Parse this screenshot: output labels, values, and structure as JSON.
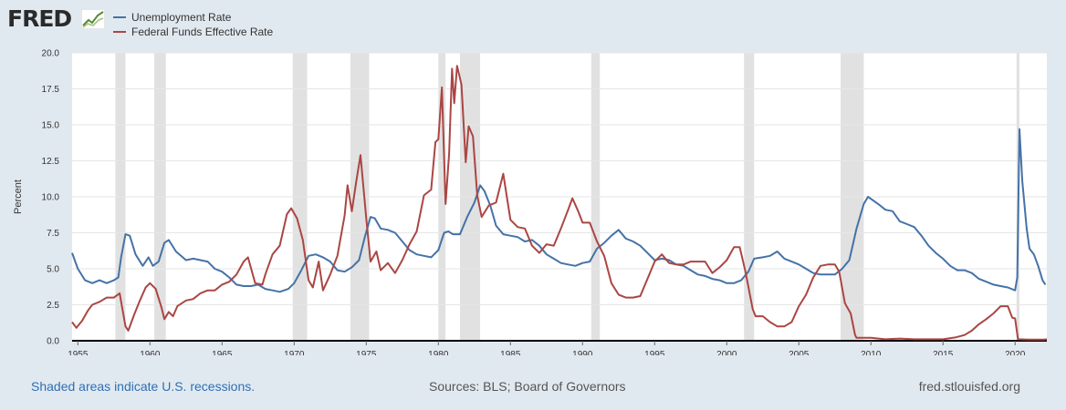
{
  "header": {
    "logo_text": "FRED",
    "logo_icon": "line-graph-icon"
  },
  "chart_data": {
    "type": "line",
    "xlim": [
      1954.6,
      2022.2
    ],
    "ylim": [
      0,
      20
    ],
    "ylabel": "Percent",
    "x_ticks": [
      1955,
      1960,
      1965,
      1970,
      1975,
      1980,
      1985,
      1990,
      1995,
      2000,
      2005,
      2010,
      2015,
      2020
    ],
    "y_ticks": [
      0.0,
      2.5,
      5.0,
      7.5,
      10.0,
      12.5,
      15.0,
      17.5,
      20.0
    ],
    "grid": "horizontal",
    "legend_position": "top-left",
    "recessions": [
      [
        1957.6,
        1958.3
      ],
      [
        1960.3,
        1961.1
      ],
      [
        1969.9,
        1970.9
      ],
      [
        1973.9,
        1975.2
      ],
      [
        1980.0,
        1980.5
      ],
      [
        1981.5,
        1982.9
      ],
      [
        1990.6,
        1991.2
      ],
      [
        2001.2,
        2001.9
      ],
      [
        2007.9,
        2009.5
      ],
      [
        2020.1,
        2020.3
      ]
    ],
    "series": [
      {
        "name": "Unemployment Rate",
        "color": "#4572a7",
        "points": [
          [
            1954.6,
            6.1
          ],
          [
            1955.0,
            5.0
          ],
          [
            1955.5,
            4.2
          ],
          [
            1956.0,
            4.0
          ],
          [
            1956.5,
            4.2
          ],
          [
            1957.0,
            4.0
          ],
          [
            1957.5,
            4.2
          ],
          [
            1957.8,
            4.4
          ],
          [
            1958.0,
            5.8
          ],
          [
            1958.3,
            7.4
          ],
          [
            1958.6,
            7.3
          ],
          [
            1959.0,
            6.0
          ],
          [
            1959.5,
            5.2
          ],
          [
            1959.9,
            5.8
          ],
          [
            1960.2,
            5.2
          ],
          [
            1960.6,
            5.5
          ],
          [
            1961.0,
            6.8
          ],
          [
            1961.3,
            7.0
          ],
          [
            1961.8,
            6.2
          ],
          [
            1962.5,
            5.6
          ],
          [
            1963.0,
            5.7
          ],
          [
            1963.5,
            5.6
          ],
          [
            1964.0,
            5.5
          ],
          [
            1964.5,
            5.0
          ],
          [
            1965.0,
            4.8
          ],
          [
            1965.5,
            4.4
          ],
          [
            1966.0,
            3.9
          ],
          [
            1966.5,
            3.8
          ],
          [
            1967.0,
            3.8
          ],
          [
            1967.5,
            3.9
          ],
          [
            1968.0,
            3.6
          ],
          [
            1968.5,
            3.5
          ],
          [
            1969.0,
            3.4
          ],
          [
            1969.6,
            3.6
          ],
          [
            1970.0,
            4.0
          ],
          [
            1970.5,
            4.9
          ],
          [
            1971.0,
            5.9
          ],
          [
            1971.5,
            6.0
          ],
          [
            1972.0,
            5.8
          ],
          [
            1972.5,
            5.5
          ],
          [
            1973.0,
            4.9
          ],
          [
            1973.5,
            4.8
          ],
          [
            1974.0,
            5.1
          ],
          [
            1974.5,
            5.6
          ],
          [
            1974.9,
            7.2
          ],
          [
            1975.3,
            8.6
          ],
          [
            1975.6,
            8.5
          ],
          [
            1976.0,
            7.8
          ],
          [
            1976.5,
            7.7
          ],
          [
            1977.0,
            7.5
          ],
          [
            1977.5,
            6.9
          ],
          [
            1978.0,
            6.3
          ],
          [
            1978.5,
            6.0
          ],
          [
            1979.0,
            5.9
          ],
          [
            1979.5,
            5.8
          ],
          [
            1980.0,
            6.3
          ],
          [
            1980.4,
            7.5
          ],
          [
            1980.7,
            7.6
          ],
          [
            1981.0,
            7.4
          ],
          [
            1981.5,
            7.4
          ],
          [
            1982.0,
            8.6
          ],
          [
            1982.5,
            9.6
          ],
          [
            1982.9,
            10.8
          ],
          [
            1983.2,
            10.4
          ],
          [
            1983.6,
            9.4
          ],
          [
            1984.0,
            8.0
          ],
          [
            1984.5,
            7.4
          ],
          [
            1985.0,
            7.3
          ],
          [
            1985.5,
            7.2
          ],
          [
            1986.0,
            6.9
          ],
          [
            1986.5,
            7.0
          ],
          [
            1987.0,
            6.6
          ],
          [
            1987.5,
            6.0
          ],
          [
            1988.0,
            5.7
          ],
          [
            1988.5,
            5.4
          ],
          [
            1989.0,
            5.3
          ],
          [
            1989.5,
            5.2
          ],
          [
            1990.0,
            5.4
          ],
          [
            1990.5,
            5.5
          ],
          [
            1991.0,
            6.4
          ],
          [
            1991.5,
            6.8
          ],
          [
            1992.0,
            7.3
          ],
          [
            1992.5,
            7.7
          ],
          [
            1993.0,
            7.1
          ],
          [
            1993.5,
            6.9
          ],
          [
            1994.0,
            6.6
          ],
          [
            1994.5,
            6.1
          ],
          [
            1995.0,
            5.6
          ],
          [
            1995.5,
            5.7
          ],
          [
            1996.0,
            5.6
          ],
          [
            1996.5,
            5.3
          ],
          [
            1997.0,
            5.2
          ],
          [
            1997.5,
            4.9
          ],
          [
            1998.0,
            4.6
          ],
          [
            1998.5,
            4.5
          ],
          [
            1999.0,
            4.3
          ],
          [
            1999.5,
            4.2
          ],
          [
            2000.0,
            4.0
          ],
          [
            2000.5,
            4.0
          ],
          [
            2001.0,
            4.2
          ],
          [
            2001.5,
            4.8
          ],
          [
            2001.9,
            5.7
          ],
          [
            2002.5,
            5.8
          ],
          [
            2003.0,
            5.9
          ],
          [
            2003.5,
            6.2
          ],
          [
            2004.0,
            5.7
          ],
          [
            2004.5,
            5.5
          ],
          [
            2005.0,
            5.3
          ],
          [
            2005.5,
            5.0
          ],
          [
            2006.0,
            4.7
          ],
          [
            2006.5,
            4.6
          ],
          [
            2007.0,
            4.6
          ],
          [
            2007.5,
            4.6
          ],
          [
            2008.0,
            5.0
          ],
          [
            2008.5,
            5.6
          ],
          [
            2009.0,
            7.8
          ],
          [
            2009.5,
            9.5
          ],
          [
            2009.8,
            10.0
          ],
          [
            2010.5,
            9.5
          ],
          [
            2011.0,
            9.1
          ],
          [
            2011.5,
            9.0
          ],
          [
            2012.0,
            8.3
          ],
          [
            2012.5,
            8.1
          ],
          [
            2013.0,
            7.9
          ],
          [
            2013.5,
            7.3
          ],
          [
            2014.0,
            6.6
          ],
          [
            2014.5,
            6.1
          ],
          [
            2015.0,
            5.7
          ],
          [
            2015.5,
            5.2
          ],
          [
            2016.0,
            4.9
          ],
          [
            2016.5,
            4.9
          ],
          [
            2017.0,
            4.7
          ],
          [
            2017.5,
            4.3
          ],
          [
            2018.0,
            4.1
          ],
          [
            2018.5,
            3.9
          ],
          [
            2019.0,
            3.8
          ],
          [
            2019.5,
            3.7
          ],
          [
            2020.0,
            3.5
          ],
          [
            2020.15,
            4.4
          ],
          [
            2020.3,
            14.7
          ],
          [
            2020.5,
            11.1
          ],
          [
            2020.8,
            7.8
          ],
          [
            2021.0,
            6.4
          ],
          [
            2021.3,
            6.0
          ],
          [
            2021.6,
            5.2
          ],
          [
            2021.9,
            4.2
          ],
          [
            2022.1,
            3.9
          ]
        ]
      },
      {
        "name": "Federal Funds Effective Rate",
        "color": "#aa4643",
        "points": [
          [
            1954.6,
            1.3
          ],
          [
            1954.9,
            0.9
          ],
          [
            1955.3,
            1.4
          ],
          [
            1955.7,
            2.1
          ],
          [
            1956.0,
            2.5
          ],
          [
            1956.5,
            2.7
          ],
          [
            1957.0,
            3.0
          ],
          [
            1957.5,
            3.0
          ],
          [
            1957.9,
            3.3
          ],
          [
            1958.3,
            1.0
          ],
          [
            1958.5,
            0.7
          ],
          [
            1958.9,
            1.8
          ],
          [
            1959.3,
            2.8
          ],
          [
            1959.7,
            3.7
          ],
          [
            1960.0,
            4.0
          ],
          [
            1960.4,
            3.6
          ],
          [
            1960.8,
            2.3
          ],
          [
            1961.0,
            1.5
          ],
          [
            1961.3,
            2.0
          ],
          [
            1961.6,
            1.7
          ],
          [
            1961.9,
            2.4
          ],
          [
            1962.5,
            2.8
          ],
          [
            1963.0,
            2.9
          ],
          [
            1963.5,
            3.3
          ],
          [
            1964.0,
            3.5
          ],
          [
            1964.5,
            3.5
          ],
          [
            1965.0,
            3.9
          ],
          [
            1965.5,
            4.1
          ],
          [
            1966.0,
            4.6
          ],
          [
            1966.5,
            5.5
          ],
          [
            1966.8,
            5.8
          ],
          [
            1967.3,
            4.0
          ],
          [
            1967.8,
            3.9
          ],
          [
            1968.0,
            4.6
          ],
          [
            1968.5,
            6.0
          ],
          [
            1969.0,
            6.6
          ],
          [
            1969.5,
            8.8
          ],
          [
            1969.8,
            9.2
          ],
          [
            1970.2,
            8.5
          ],
          [
            1970.6,
            7.0
          ],
          [
            1971.0,
            4.2
          ],
          [
            1971.3,
            3.7
          ],
          [
            1971.7,
            5.5
          ],
          [
            1972.0,
            3.5
          ],
          [
            1972.5,
            4.6
          ],
          [
            1973.0,
            5.9
          ],
          [
            1973.5,
            8.7
          ],
          [
            1973.7,
            10.8
          ],
          [
            1974.0,
            9.0
          ],
          [
            1974.3,
            11.0
          ],
          [
            1974.6,
            12.9
          ],
          [
            1975.0,
            8.5
          ],
          [
            1975.3,
            5.5
          ],
          [
            1975.7,
            6.2
          ],
          [
            1976.0,
            4.9
          ],
          [
            1976.5,
            5.4
          ],
          [
            1977.0,
            4.7
          ],
          [
            1977.5,
            5.6
          ],
          [
            1978.0,
            6.7
          ],
          [
            1978.5,
            7.6
          ],
          [
            1979.0,
            10.1
          ],
          [
            1979.5,
            10.5
          ],
          [
            1979.8,
            13.8
          ],
          [
            1980.0,
            14.0
          ],
          [
            1980.25,
            17.6
          ],
          [
            1980.5,
            9.5
          ],
          [
            1980.75,
            13.0
          ],
          [
            1980.95,
            18.9
          ],
          [
            1981.1,
            16.5
          ],
          [
            1981.3,
            19.1
          ],
          [
            1981.6,
            17.8
          ],
          [
            1981.9,
            12.4
          ],
          [
            1982.1,
            14.9
          ],
          [
            1982.4,
            14.2
          ],
          [
            1982.7,
            10.1
          ],
          [
            1983.0,
            8.6
          ],
          [
            1983.5,
            9.4
          ],
          [
            1984.0,
            9.6
          ],
          [
            1984.5,
            11.6
          ],
          [
            1985.0,
            8.4
          ],
          [
            1985.5,
            7.9
          ],
          [
            1986.0,
            7.8
          ],
          [
            1986.5,
            6.6
          ],
          [
            1987.0,
            6.1
          ],
          [
            1987.5,
            6.7
          ],
          [
            1988.0,
            6.6
          ],
          [
            1988.5,
            7.8
          ],
          [
            1989.0,
            9.1
          ],
          [
            1989.3,
            9.9
          ],
          [
            1989.7,
            9.0
          ],
          [
            1990.0,
            8.2
          ],
          [
            1990.5,
            8.2
          ],
          [
            1991.0,
            6.9
          ],
          [
            1991.5,
            5.9
          ],
          [
            1992.0,
            4.0
          ],
          [
            1992.5,
            3.2
          ],
          [
            1993.0,
            3.0
          ],
          [
            1993.5,
            3.0
          ],
          [
            1994.0,
            3.1
          ],
          [
            1994.5,
            4.3
          ],
          [
            1995.0,
            5.5
          ],
          [
            1995.5,
            6.0
          ],
          [
            1996.0,
            5.4
          ],
          [
            1996.5,
            5.3
          ],
          [
            1997.0,
            5.3
          ],
          [
            1997.5,
            5.5
          ],
          [
            1998.0,
            5.5
          ],
          [
            1998.5,
            5.5
          ],
          [
            1999.0,
            4.7
          ],
          [
            1999.5,
            5.1
          ],
          [
            2000.0,
            5.6
          ],
          [
            2000.5,
            6.5
          ],
          [
            2000.9,
            6.5
          ],
          [
            2001.3,
            4.8
          ],
          [
            2001.8,
            2.2
          ],
          [
            2002.0,
            1.7
          ],
          [
            2002.5,
            1.7
          ],
          [
            2003.0,
            1.3
          ],
          [
            2003.5,
            1.0
          ],
          [
            2004.0,
            1.0
          ],
          [
            2004.5,
            1.3
          ],
          [
            2005.0,
            2.4
          ],
          [
            2005.5,
            3.2
          ],
          [
            2006.0,
            4.4
          ],
          [
            2006.5,
            5.2
          ],
          [
            2007.0,
            5.3
          ],
          [
            2007.5,
            5.3
          ],
          [
            2007.8,
            4.8
          ],
          [
            2008.2,
            2.6
          ],
          [
            2008.6,
            1.9
          ],
          [
            2008.9,
            0.4
          ],
          [
            2009.0,
            0.2
          ],
          [
            2010.0,
            0.2
          ],
          [
            2011.0,
            0.1
          ],
          [
            2012.0,
            0.15
          ],
          [
            2013.0,
            0.1
          ],
          [
            2014.0,
            0.1
          ],
          [
            2015.0,
            0.1
          ],
          [
            2015.9,
            0.24
          ],
          [
            2016.5,
            0.4
          ],
          [
            2017.0,
            0.7
          ],
          [
            2017.5,
            1.15
          ],
          [
            2018.0,
            1.5
          ],
          [
            2018.5,
            1.9
          ],
          [
            2019.0,
            2.4
          ],
          [
            2019.5,
            2.4
          ],
          [
            2019.8,
            1.6
          ],
          [
            2020.0,
            1.55
          ],
          [
            2020.2,
            0.1
          ],
          [
            2021.0,
            0.08
          ],
          [
            2022.0,
            0.08
          ],
          [
            2022.2,
            0.1
          ]
        ]
      }
    ]
  },
  "footer": {
    "note": "Shaded areas indicate U.S. recessions.",
    "source": "Sources: BLS; Board of Governors",
    "url": "fred.stlouisfed.org"
  }
}
